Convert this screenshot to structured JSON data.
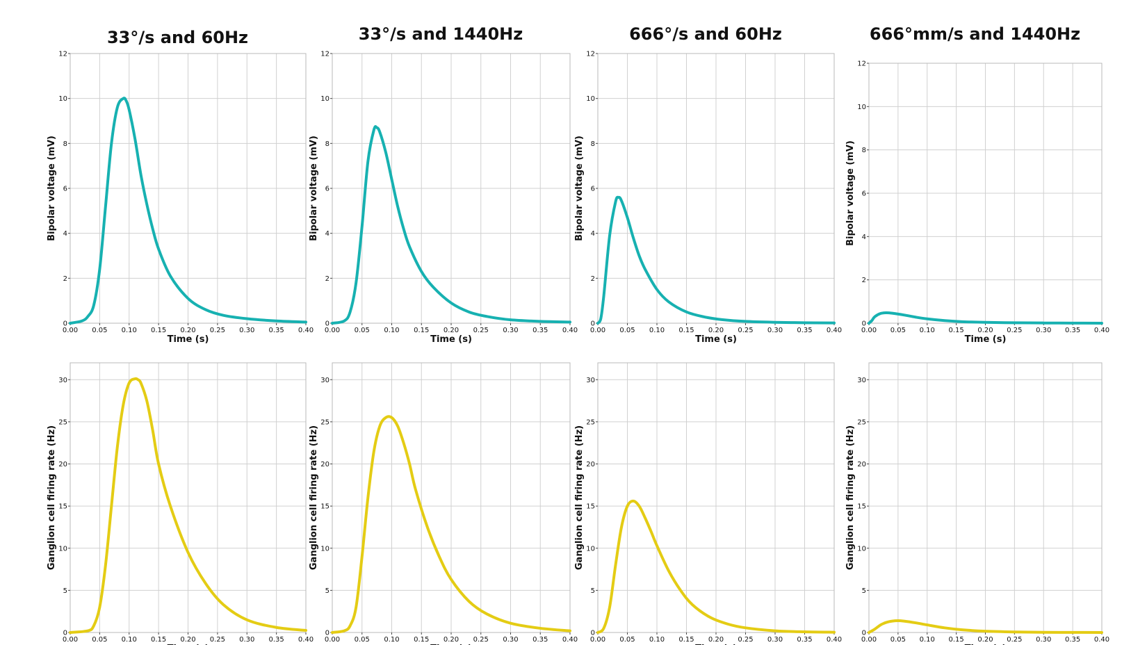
{
  "colors": {
    "bipolar": "#17b1b1",
    "ganglion": "#e4cc14"
  },
  "chart_data": [
    {
      "type": "line",
      "row": 0,
      "col": 0,
      "title": "33°/s and 60Hz",
      "xlabel": "Time (s)",
      "ylabel": "Bipolar voltage (mV)",
      "xlim": [
        0,
        0.4
      ],
      "ylim": [
        0,
        12
      ],
      "xticks": [
        "0.00",
        "0.05",
        "0.10",
        "0.15",
        "0.20",
        "0.25",
        "0.30",
        "0.35",
        "0.40"
      ],
      "yticks": [
        "0",
        "2",
        "4",
        "6",
        "8",
        "10",
        "12"
      ],
      "grid": true,
      "series_color": "bipolar",
      "series": [
        {
          "x": [
            0,
            0.02,
            0.03,
            0.04,
            0.05,
            0.06,
            0.07,
            0.08,
            0.09,
            0.095,
            0.1,
            0.11,
            0.12,
            0.13,
            0.14,
            0.15,
            0.17,
            0.2,
            0.23,
            0.26,
            0.3,
            0.35,
            0.4
          ],
          "y": [
            0,
            0.1,
            0.3,
            0.8,
            2.4,
            5.2,
            8.0,
            9.6,
            10.0,
            9.9,
            9.5,
            8.2,
            6.6,
            5.3,
            4.2,
            3.3,
            2.1,
            1.1,
            0.6,
            0.35,
            0.2,
            0.1,
            0.05
          ]
        }
      ]
    },
    {
      "type": "line",
      "row": 0,
      "col": 1,
      "title": "33°/s and 1440Hz",
      "xlabel": "Time (s)",
      "ylabel": "Bipolar voltage (mV)",
      "xlim": [
        0,
        0.4
      ],
      "ylim": [
        0,
        12
      ],
      "xticks": [
        "0.00",
        "0.05",
        "0.10",
        "0.15",
        "0.20",
        "0.25",
        "0.30",
        "0.35",
        "0.40"
      ],
      "yticks": [
        "0",
        "2",
        "4",
        "6",
        "8",
        "10",
        "12"
      ],
      "grid": true,
      "series_color": "bipolar",
      "series": [
        {
          "x": [
            0,
            0.02,
            0.03,
            0.04,
            0.05,
            0.06,
            0.07,
            0.075,
            0.08,
            0.09,
            0.1,
            0.11,
            0.12,
            0.13,
            0.15,
            0.17,
            0.2,
            0.23,
            0.26,
            0.3,
            0.35,
            0.4
          ],
          "y": [
            0,
            0.1,
            0.5,
            1.8,
            4.3,
            7.2,
            8.6,
            8.7,
            8.5,
            7.6,
            6.4,
            5.2,
            4.2,
            3.4,
            2.3,
            1.6,
            0.9,
            0.5,
            0.3,
            0.15,
            0.08,
            0.05
          ]
        }
      ]
    },
    {
      "type": "line",
      "row": 0,
      "col": 2,
      "title": "666°/s and 60Hz",
      "xlabel": "Time (s)",
      "ylabel": "Bipolar voltage (mV)",
      "xlim": [
        0,
        0.4
      ],
      "ylim": [
        0,
        12
      ],
      "xticks": [
        "0.00",
        "0.05",
        "0.10",
        "0.15",
        "0.20",
        "0.25",
        "0.30",
        "0.35",
        "0.40"
      ],
      "yticks": [
        "0",
        "2",
        "4",
        "6",
        "8",
        "10",
        "12"
      ],
      "grid": true,
      "series_color": "bipolar",
      "series": [
        {
          "x": [
            0,
            0.005,
            0.01,
            0.02,
            0.03,
            0.035,
            0.04,
            0.05,
            0.06,
            0.07,
            0.08,
            0.1,
            0.12,
            0.15,
            0.18,
            0.21,
            0.25,
            0.3,
            0.35,
            0.4
          ],
          "y": [
            0,
            0.2,
            1.2,
            3.9,
            5.4,
            5.6,
            5.45,
            4.7,
            3.8,
            3.0,
            2.4,
            1.5,
            0.95,
            0.5,
            0.28,
            0.16,
            0.08,
            0.04,
            0.02,
            0.01
          ]
        }
      ]
    },
    {
      "type": "line",
      "row": 0,
      "col": 3,
      "title": "666°mm/s and 1440Hz",
      "xlabel": "Time (s)",
      "ylabel": "Bipolar voltage (mV)",
      "xlim": [
        0,
        0.4
      ],
      "ylim": [
        0,
        12
      ],
      "xticks": [
        "0.00",
        "0.05",
        "0.10",
        "0.15",
        "0.20",
        "0.25",
        "0.30",
        "0.35",
        "0.40"
      ],
      "yticks": [
        "0",
        "2",
        "4",
        "6",
        "8",
        "10",
        "12"
      ],
      "grid": true,
      "series_color": "bipolar",
      "series": [
        {
          "x": [
            0,
            0.005,
            0.01,
            0.02,
            0.03,
            0.04,
            0.06,
            0.08,
            0.1,
            0.13,
            0.16,
            0.2,
            0.25,
            0.3,
            0.35,
            0.4
          ],
          "y": [
            0,
            0.12,
            0.3,
            0.45,
            0.48,
            0.46,
            0.38,
            0.28,
            0.2,
            0.12,
            0.07,
            0.04,
            0.02,
            0.01,
            0.005,
            0.0
          ]
        }
      ]
    },
    {
      "type": "line",
      "row": 1,
      "col": 0,
      "title": "",
      "xlabel": "Time (s)",
      "ylabel": "Ganglion cell firing rate (Hz)",
      "xlim": [
        0,
        0.4
      ],
      "ylim": [
        0,
        32
      ],
      "xticks": [
        "0.00",
        "0.05",
        "0.10",
        "0.15",
        "0.20",
        "0.25",
        "0.30",
        "0.35",
        "0.40"
      ],
      "yticks": [
        "0",
        "5",
        "10",
        "15",
        "20",
        "25",
        "30"
      ],
      "grid": true,
      "series_color": "ganglion",
      "series": [
        {
          "x": [
            0,
            0.03,
            0.04,
            0.05,
            0.06,
            0.07,
            0.08,
            0.09,
            0.1,
            0.11,
            0.115,
            0.12,
            0.13,
            0.14,
            0.15,
            0.17,
            0.2,
            0.23,
            0.26,
            0.3,
            0.35,
            0.4
          ],
          "y": [
            0,
            0.2,
            0.8,
            3,
            8,
            15,
            22,
            27,
            29.6,
            30.1,
            30.0,
            29.6,
            27.5,
            24,
            20,
            15,
            9.5,
            5.8,
            3.3,
            1.5,
            0.6,
            0.25
          ]
        }
      ]
    },
    {
      "type": "line",
      "row": 1,
      "col": 1,
      "title": "",
      "xlabel": "Time (s)",
      "ylabel": "Ganglion cell firing rate (Hz)",
      "xlim": [
        0,
        0.4
      ],
      "ylim": [
        0,
        32
      ],
      "xticks": [
        "0.00",
        "0.05",
        "0.10",
        "0.15",
        "0.20",
        "0.25",
        "0.30",
        "0.35",
        "0.40"
      ],
      "yticks": [
        "0",
        "5",
        "10",
        "15",
        "20",
        "25",
        "30"
      ],
      "grid": true,
      "series_color": "ganglion",
      "series": [
        {
          "x": [
            0,
            0.02,
            0.03,
            0.04,
            0.05,
            0.06,
            0.07,
            0.08,
            0.09,
            0.1,
            0.11,
            0.12,
            0.13,
            0.14,
            0.16,
            0.18,
            0.2,
            0.23,
            0.26,
            0.3,
            0.35,
            0.4
          ],
          "y": [
            0,
            0.2,
            0.8,
            3,
            9,
            16,
            21.5,
            24.5,
            25.5,
            25.5,
            24.5,
            22.5,
            20,
            17,
            12.5,
            9,
            6.3,
            3.7,
            2.2,
            1.1,
            0.5,
            0.2
          ]
        }
      ]
    },
    {
      "type": "line",
      "row": 1,
      "col": 2,
      "title": "",
      "xlabel": "Time (s)",
      "ylabel": "Ganglion cell firing rate (Hz)",
      "xlim": [
        0,
        0.4
      ],
      "ylim": [
        0,
        32
      ],
      "xticks": [
        "0.00",
        "0.05",
        "0.10",
        "0.15",
        "0.20",
        "0.25",
        "0.30",
        "0.35",
        "0.40"
      ],
      "yticks": [
        "0",
        "5",
        "10",
        "15",
        "20",
        "25",
        "30"
      ],
      "grid": true,
      "series_color": "ganglion",
      "series": [
        {
          "x": [
            0,
            0.01,
            0.02,
            0.03,
            0.04,
            0.05,
            0.06,
            0.07,
            0.08,
            0.09,
            0.1,
            0.12,
            0.14,
            0.16,
            0.19,
            0.22,
            0.25,
            0.3,
            0.35,
            0.4
          ],
          "y": [
            0,
            0.5,
            3,
            8,
            12.5,
            15.0,
            15.6,
            15.0,
            13.6,
            12,
            10.3,
            7.3,
            5,
            3.3,
            1.8,
            1,
            0.55,
            0.2,
            0.08,
            0.03
          ]
        }
      ]
    },
    {
      "type": "line",
      "row": 1,
      "col": 3,
      "title": "",
      "xlabel": "Time (s)",
      "ylabel": "Ganglion cell firing rate (Hz)",
      "xlim": [
        0,
        0.4
      ],
      "ylim": [
        0,
        32
      ],
      "xticks": [
        "0.00",
        "0.05",
        "0.10",
        "0.15",
        "0.20",
        "0.25",
        "0.30",
        "0.35",
        "0.40"
      ],
      "yticks": [
        "0",
        "5",
        "10",
        "15",
        "20",
        "25",
        "30"
      ],
      "grid": true,
      "series_color": "ganglion",
      "series": [
        {
          "x": [
            0,
            0.01,
            0.02,
            0.03,
            0.04,
            0.05,
            0.06,
            0.08,
            0.1,
            0.13,
            0.16,
            0.2,
            0.25,
            0.3,
            0.35,
            0.4
          ],
          "y": [
            0,
            0.4,
            0.9,
            1.2,
            1.35,
            1.4,
            1.35,
            1.15,
            0.9,
            0.55,
            0.32,
            0.15,
            0.06,
            0.02,
            0.01,
            0.0
          ]
        }
      ]
    }
  ]
}
